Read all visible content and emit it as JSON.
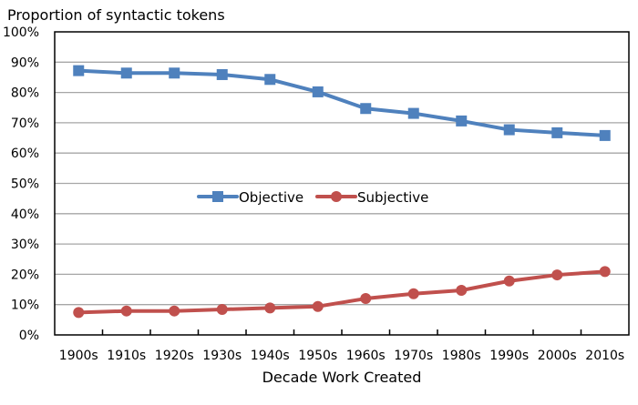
{
  "chart_data": {
    "type": "line",
    "title": "",
    "ylabel": "Proportion of syntactic tokens",
    "xlabel": "Decade Work Created",
    "categories": [
      "1900s",
      "1910s",
      "1920s",
      "1930s",
      "1940s",
      "1950s",
      "1960s",
      "1970s",
      "1980s",
      "1990s",
      "2000s",
      "2010s"
    ],
    "ylim": [
      0,
      100
    ],
    "yticks": [
      "0%",
      "10%",
      "20%",
      "30%",
      "40%",
      "50%",
      "60%",
      "70%",
      "80%",
      "90%",
      "100%"
    ],
    "grid": true,
    "legend_position": "center",
    "series": [
      {
        "name": "Objective",
        "color": "#4f81bd",
        "marker": "square",
        "values": [
          87.2,
          86.4,
          86.4,
          85.9,
          84.3,
          80.2,
          74.7,
          73.1,
          70.6,
          67.7,
          66.7,
          65.8
        ]
      },
      {
        "name": "Subjective",
        "color": "#c0504d",
        "marker": "circle",
        "values": [
          7.4,
          7.9,
          7.9,
          8.4,
          8.9,
          9.4,
          12.0,
          13.6,
          14.7,
          17.8,
          19.8,
          20.9
        ]
      }
    ]
  }
}
